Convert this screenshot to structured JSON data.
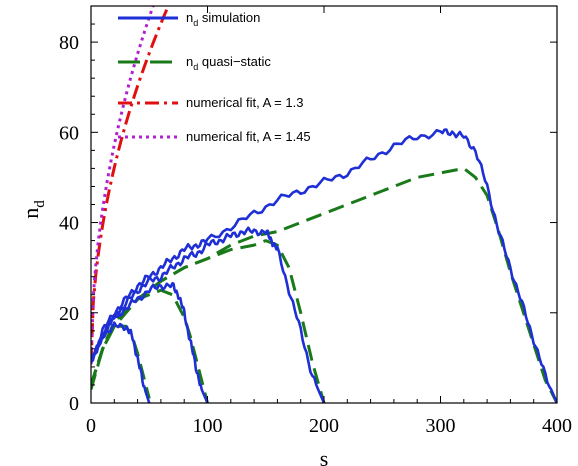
{
  "chart_data": {
    "type": "line",
    "xlabel": "s",
    "ylabel": "n",
    "ylabel_sub": "d",
    "xlim": [
      0,
      400
    ],
    "ylim": [
      0,
      88
    ],
    "x_ticks": [
      0,
      100,
      200,
      300,
      400
    ],
    "x_tick_labels": [
      "0",
      "100",
      "200",
      "300",
      "400"
    ],
    "y_ticks": [
      0,
      20,
      40,
      60,
      80
    ],
    "y_tick_labels": [
      "0",
      "20",
      "40",
      "60",
      "80"
    ],
    "grid": false,
    "legend_position": "top-left",
    "legend": [
      {
        "prefix": "n",
        "sub": "d",
        "rest": " simulation",
        "color": "#1f2fd6",
        "dash": "solid"
      },
      {
        "prefix": "n",
        "sub": "d",
        "rest": " quasi−static",
        "color": "#1a7a1a",
        "dash": "dashed"
      },
      {
        "prefix": "",
        "sub": "",
        "rest": "numerical fit, A = 1.3",
        "color": "#e01010",
        "dash": "dashdot"
      },
      {
        "prefix": "",
        "sub": "",
        "rest": "numerical fit, A = 1.45",
        "color": "#b020d0",
        "dash": "dotted"
      }
    ],
    "series": [
      {
        "name": "n_d simulation",
        "color": "#1f2fd6",
        "dash": "solid",
        "runs": [
          {
            "x": [
              0,
              10,
              20,
              30,
              35,
              40,
              45,
              50
            ],
            "y": [
              9,
              15,
              17,
              17,
              15,
              10,
              4,
              0
            ]
          },
          {
            "x": [
              0,
              10,
              20,
              30,
              40,
              50,
              60,
              70,
              75,
              80,
              85,
              90,
              95,
              100
            ],
            "y": [
              9,
              15,
              19,
              21,
              23,
              25,
              26,
              26,
              24,
              20,
              14,
              8,
              3,
              0
            ]
          },
          {
            "x": [
              0,
              10,
              20,
              30,
              40,
              50,
              60,
              70,
              80,
              90,
              100,
              110,
              120,
              130,
              140,
              150,
              155,
              160,
              170,
              180,
              190,
              200
            ],
            "y": [
              9,
              15,
              19,
              22,
              25,
              27,
              28,
              30,
              32,
              33,
              35,
              36,
              37,
              38,
              38,
              38,
              36,
              34,
              25,
              16,
              6,
              0
            ]
          },
          {
            "x": [
              0,
              10,
              20,
              30,
              40,
              50,
              60,
              70,
              80,
              90,
              100,
              120,
              140,
              160,
              180,
              200,
              220,
              240,
              260,
              280,
              300,
              310,
              320,
              330,
              340,
              350,
              360,
              370,
              380,
              390,
              400
            ],
            "y": [
              9,
              16,
              20,
              23,
              26,
              28,
              30,
              32,
              34,
              35,
              36,
              39,
              42,
              45,
              47,
              49,
              51,
              54,
              57,
              59,
              60,
              60,
              59,
              56,
              48,
              38,
              30,
              22,
              14,
              6,
              0
            ]
          }
        ]
      },
      {
        "name": "n_d quasi-static",
        "color": "#1a7a1a",
        "dash": "dashed",
        "runs": [
          {
            "x": [
              0,
              10,
              20,
              30,
              35,
              40,
              45,
              50
            ],
            "y": [
              3,
              12,
              17,
              17,
              15,
              11,
              6,
              1
            ]
          },
          {
            "x": [
              0,
              10,
              20,
              30,
              40,
              50,
              60,
              70,
              80,
              85,
              90,
              95,
              100
            ],
            "y": [
              4,
              12,
              17,
              20,
              23,
              24,
              25,
              24,
              19,
              15,
              10,
              5,
              0
            ]
          },
          {
            "x": [
              0,
              10,
              20,
              40,
              60,
              80,
              100,
              120,
              140,
              150,
              160,
              170,
              180,
              190,
              200
            ],
            "y": [
              4,
              12,
              18,
              23,
              27,
              30,
              32,
              34,
              35,
              36,
              35,
              30,
              20,
              9,
              0
            ]
          },
          {
            "x": [
              0,
              10,
              20,
              40,
              60,
              80,
              100,
              120,
              140,
              160,
              180,
              200,
              220,
              240,
              260,
              280,
              300,
              320,
              330,
              340,
              350,
              360,
              370,
              380,
              390,
              400
            ],
            "y": [
              4,
              12,
              18,
              23,
              27,
              30,
              32,
              35,
              37,
              38,
              40,
              42,
              44,
              46,
              48,
              50,
              51,
              52,
              50,
              46,
              38,
              29,
              21,
              13,
              5,
              0
            ]
          }
        ]
      },
      {
        "name": "numerical fit, A = 1.3",
        "color": "#e01010",
        "dash": "dashdot",
        "fit": {
          "A": 1.3
        }
      },
      {
        "name": "numerical fit, A = 1.45",
        "color": "#b020d0",
        "dash": "dotted",
        "fit": {
          "A": 1.45
        }
      }
    ]
  }
}
